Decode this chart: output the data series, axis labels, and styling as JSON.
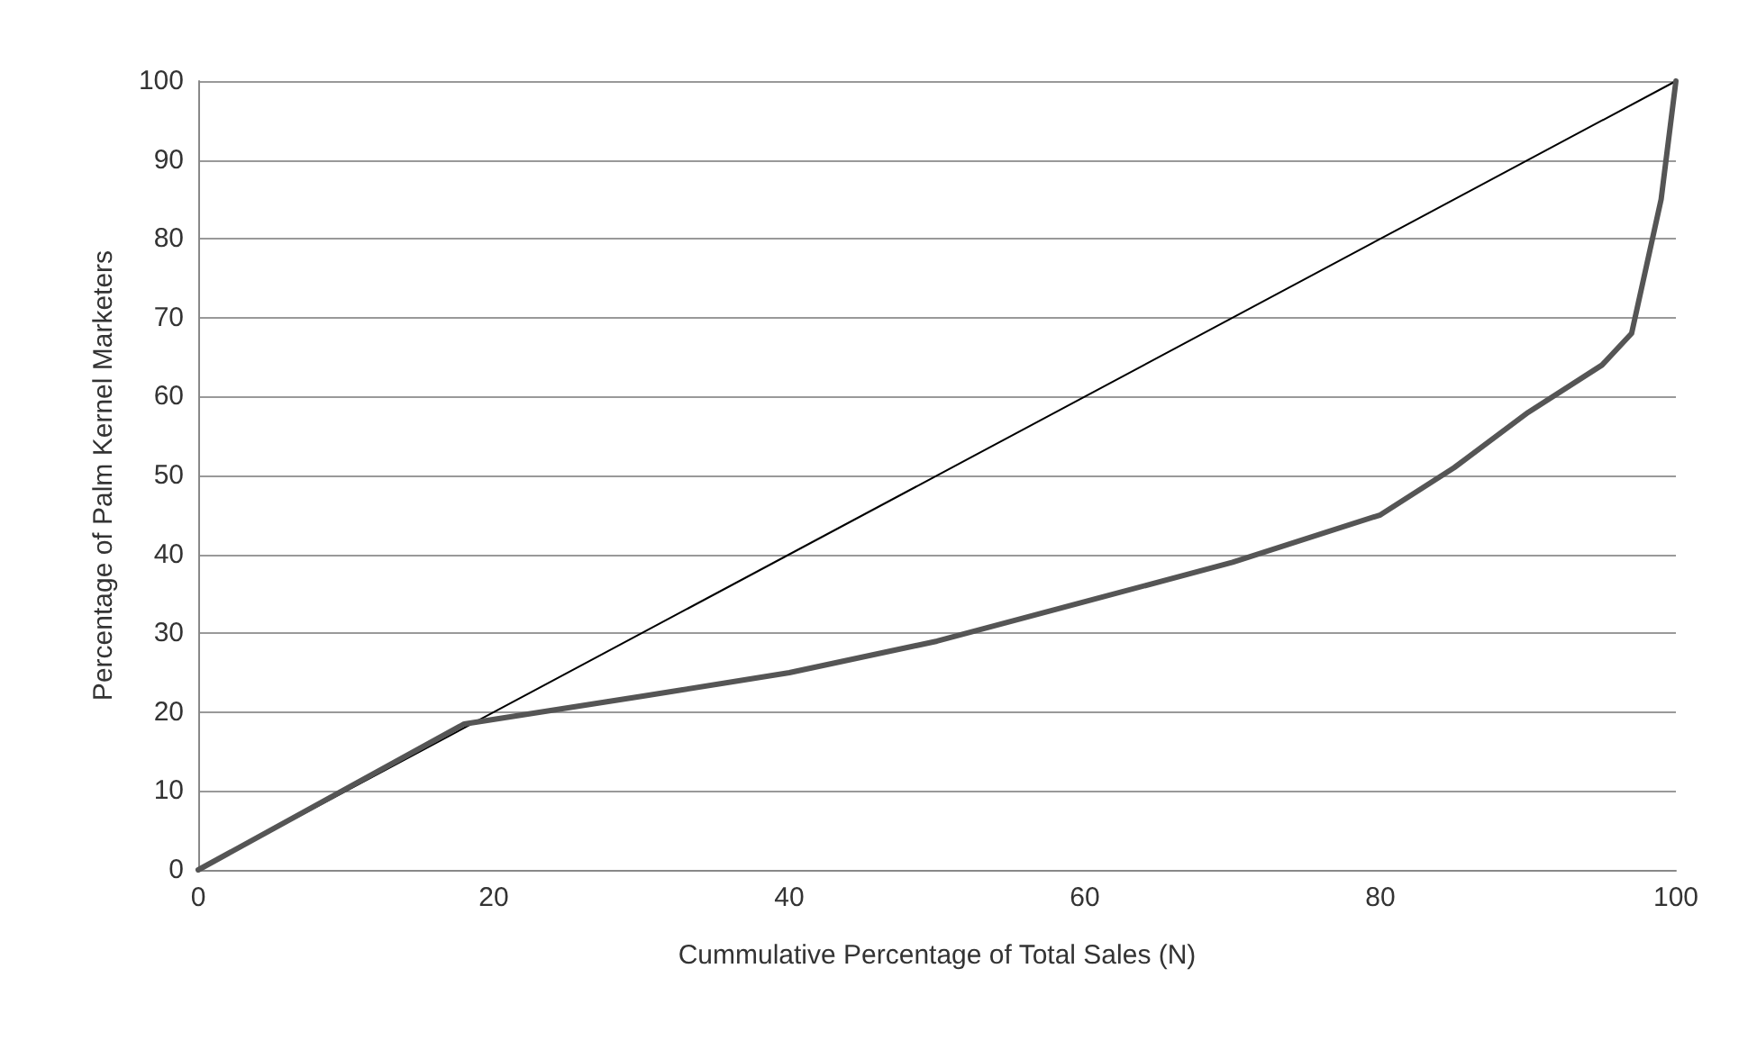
{
  "chart_data": {
    "type": "line",
    "xlabel": "Cummulative Percentage of Total Sales (N)",
    "ylabel": "Percentage of Palm Kernel Marketers",
    "series": [
      {
        "color": "#000000",
        "x": [
          0,
          100
        ],
        "values": [
          0,
          100
        ]
      },
      {
        "color": "#555555",
        "x": [
          0,
          18,
          30,
          40,
          50,
          60,
          70,
          80,
          85,
          90,
          95,
          97,
          99,
          100
        ],
        "values": [
          0,
          18.5,
          22,
          25,
          29,
          34,
          39,
          45,
          51,
          58,
          64,
          68,
          85,
          100
        ]
      }
    ],
    "xlim": [
      0,
      100
    ],
    "xticks": [
      0,
      20,
      40,
      60,
      80,
      100
    ],
    "ylim": [
      0,
      100
    ],
    "yticks": [
      0,
      10,
      20,
      30,
      40,
      50,
      60,
      70,
      80,
      90,
      100
    ],
    "grid": "y",
    "marker": "none",
    "line_style": "solid"
  }
}
